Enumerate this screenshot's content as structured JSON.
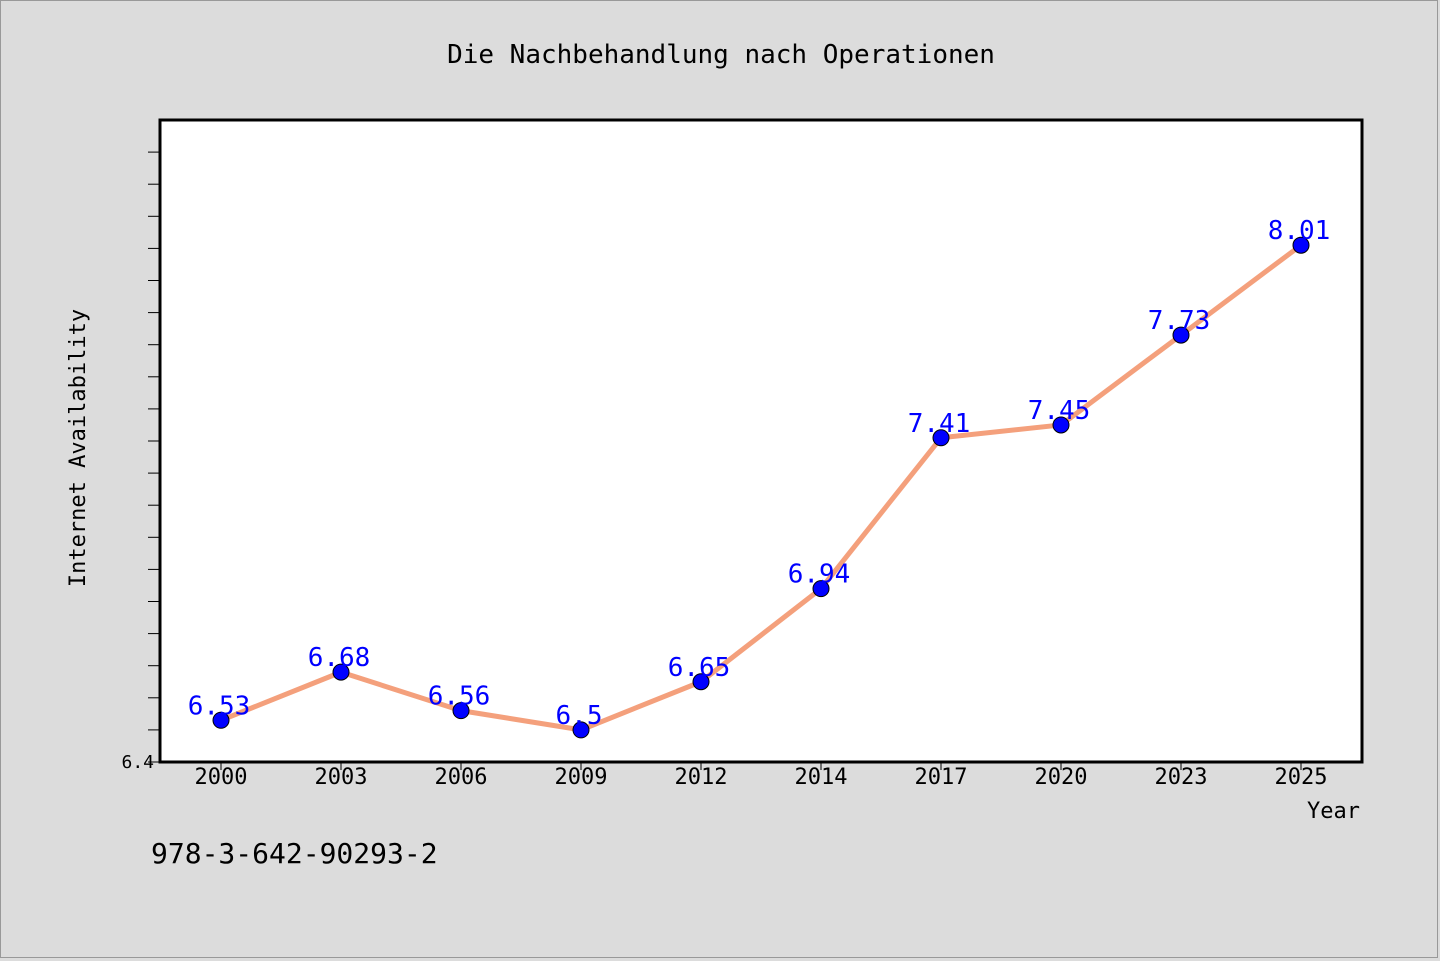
{
  "chart_data": {
    "type": "line",
    "title": "Die Nachbehandlung nach Operationen",
    "xlabel": "Year",
    "ylabel": "Internet Availability",
    "categories": [
      "2000",
      "2003",
      "2006",
      "2009",
      "2012",
      "2014",
      "2017",
      "2020",
      "2023",
      "2025"
    ],
    "series": [
      {
        "values": [
          6.53,
          6.68,
          6.56,
          6.5,
          6.65,
          6.94,
          7.41,
          7.45,
          7.73,
          8.01
        ]
      }
    ],
    "data_labels": [
      "6.53",
      "6.68",
      "6.56",
      "6.5",
      "6.65",
      "6.94",
      "7.41",
      "7.45",
      "7.73",
      "8.01"
    ],
    "y_tick_labels": [
      "6.4"
    ],
    "ylim": [
      6.4,
      8.4
    ],
    "grid": false,
    "colors": {
      "line": "#f4a07c",
      "marker": "#0000ff",
      "data_label": "#0000ff"
    }
  },
  "footer": {
    "isbn": "978-3-642-90293-2"
  }
}
